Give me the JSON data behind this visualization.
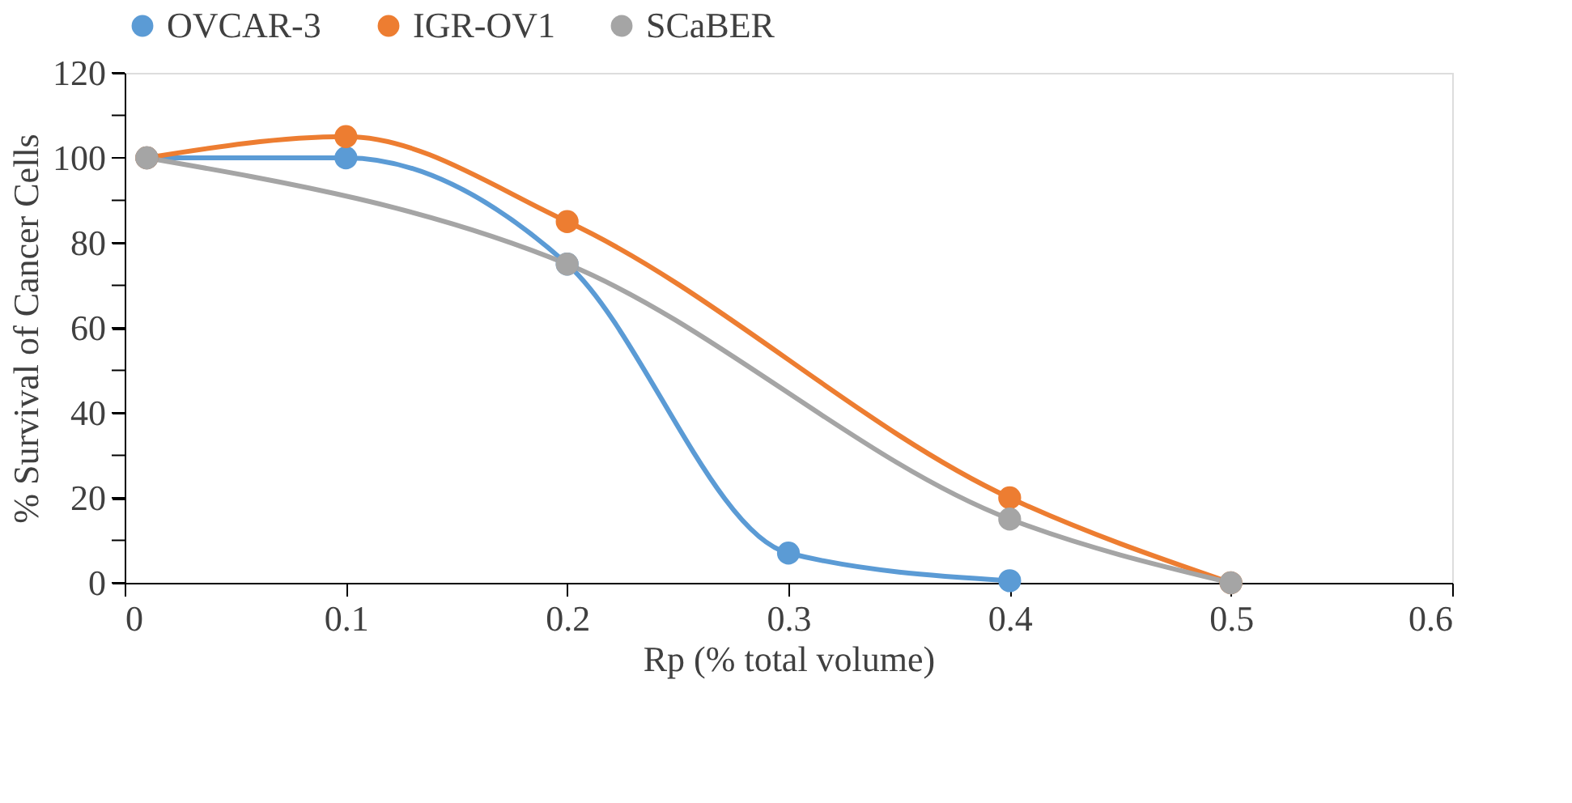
{
  "chart_data": {
    "type": "line",
    "xlabel": "Rp (% total volume)",
    "ylabel": "% Survival of Cancer Cells",
    "xlim": [
      0,
      0.6
    ],
    "xticks": [
      0,
      0.1,
      0.2,
      0.3,
      0.4,
      0.5,
      0.6
    ],
    "ylim": [
      0,
      120
    ],
    "yticks": [
      0,
      {
        "value": 10,
        "label": null
      },
      20,
      {
        "value": 30,
        "label": null
      },
      40,
      {
        "value": 50,
        "label": null
      },
      60,
      {
        "value": 70,
        "label": null
      },
      80,
      {
        "value": 90,
        "label": null
      },
      100,
      {
        "value": 110,
        "label": null
      },
      120
    ],
    "grid": false,
    "legend": "top",
    "marker": "circle",
    "line_style": "solid",
    "series": [
      {
        "name": "OVCAR-3",
        "color": "#5b9bd5",
        "x": [
          0.01,
          0.1,
          0.2,
          0.3,
          0.4
        ],
        "values": [
          100,
          100,
          75,
          7,
          0.5
        ]
      },
      {
        "name": "IGR-OV1",
        "color": "#ed7d31",
        "x": [
          0.01,
          0.1,
          0.2,
          0.4,
          0.5
        ],
        "values": [
          100,
          105,
          85,
          20,
          0
        ]
      },
      {
        "name": "SCaBER",
        "color": "#a5a5a5",
        "x": [
          0.01,
          0.2,
          0.4,
          0.5
        ],
        "values": [
          100,
          75,
          15,
          0
        ]
      }
    ]
  }
}
